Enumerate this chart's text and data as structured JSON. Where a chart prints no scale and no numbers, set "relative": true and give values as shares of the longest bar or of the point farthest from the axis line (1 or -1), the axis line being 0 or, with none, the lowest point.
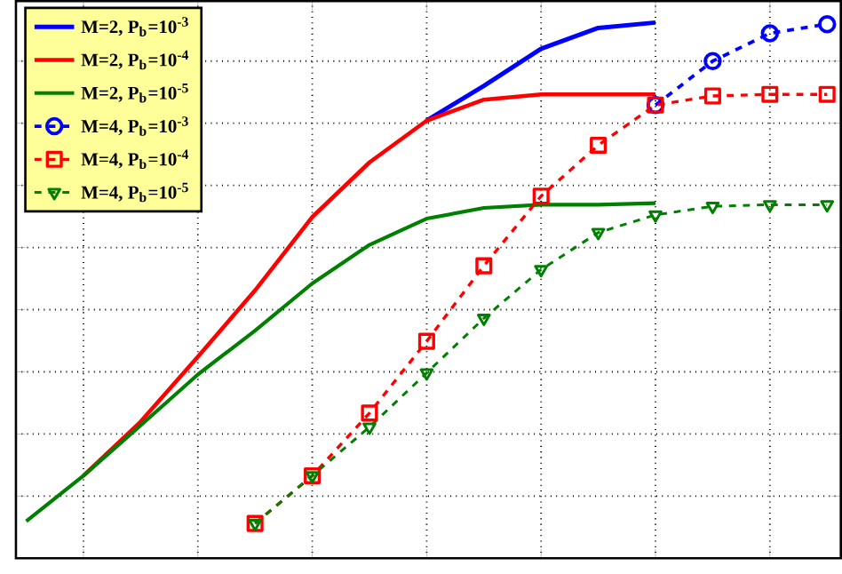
{
  "chart_data": {
    "type": "line",
    "relative": true,
    "grid": true,
    "legend": "top left",
    "categories": [
      null,
      null,
      null,
      null,
      null,
      null,
      null,
      null,
      null,
      null,
      null,
      null,
      null,
      null,
      null
    ],
    "series": [
      {
        "name": "M=2, P$_{b}$=10$^{-3}$",
        "color": "#0000ff",
        "line_style": "solid",
        "marker": "none",
        "values": [
          null,
          null,
          null,
          null,
          null,
          null,
          null,
          0.817,
          0.882,
          0.951,
          0.99,
          1.0,
          null,
          null,
          null
        ]
      },
      {
        "name": "M=2, P$_{b}$=10$^{-4}$",
        "color": "#ff0000",
        "line_style": "solid",
        "marker": "none",
        "values": [
          null,
          0.154,
          0.255,
          0.376,
          0.5,
          0.637,
          0.739,
          0.817,
          0.856,
          0.866,
          0.866,
          0.866,
          null,
          null,
          null
        ]
      },
      {
        "name": "M=2, P$_{b}$=10$^{-5}$",
        "color": "#008000",
        "line_style": "solid",
        "marker": "none",
        "values": [
          0.069,
          0.154,
          0.248,
          0.343,
          0.425,
          0.513,
          0.585,
          0.634,
          0.654,
          0.66,
          0.66,
          0.663,
          null,
          null,
          null
        ]
      },
      {
        "name": "M=4, P$_{b}$=10$^{-3}$",
        "color": "#0000ff",
        "line_style": "dashed",
        "marker": "circle",
        "values": [
          null,
          null,
          null,
          null,
          null,
          null,
          null,
          null,
          null,
          null,
          null,
          0.846,
          0.928,
          0.98,
          0.997
        ]
      },
      {
        "name": "M=4, P$_{b}$=10$^{-4}$",
        "color": "#ff0000",
        "line_style": "dashed",
        "marker": "square",
        "values": [
          null,
          null,
          null,
          null,
          0.065,
          0.154,
          0.271,
          0.405,
          0.546,
          0.676,
          0.771,
          0.846,
          0.863,
          0.866,
          0.866
        ]
      },
      {
        "name": "M=4, P$_{b}$=10$^{-5}$",
        "color": "#008000",
        "line_style": "dashed",
        "marker": "triangle",
        "values": [
          null,
          null,
          null,
          null,
          0.065,
          0.154,
          0.245,
          0.346,
          0.448,
          0.539,
          0.608,
          0.641,
          0.657,
          0.66,
          0.66
        ]
      }
    ]
  }
}
